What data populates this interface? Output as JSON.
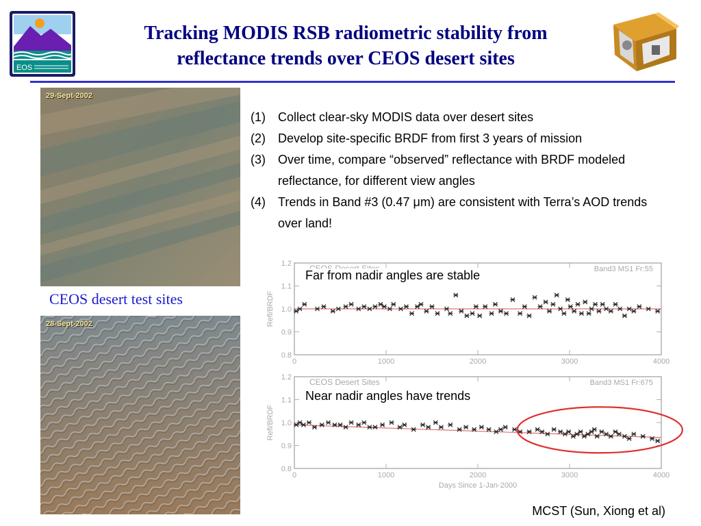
{
  "slide": {
    "title_line1": "Tracking MODIS RSB radiometric stability from",
    "title_line2": "reflectance trends over CEOS desert sites",
    "logo_text": "EOS",
    "caption": "CEOS desert test sites",
    "credit": "MCST (Sun, Xiong et al)",
    "accent_color": "#000080",
    "rule_color": "#3030d0",
    "caption_color": "#1a1acc"
  },
  "photos": {
    "top": {
      "date": "29-Sept-2002"
    },
    "bottom": {
      "date": "28-Sept-2002"
    }
  },
  "steps": [
    {
      "num": "(1)",
      "text": "Collect clear-sky MODIS data over desert sites"
    },
    {
      "num": "(2)",
      "text": "Develop site-specific BRDF from first 3 years of mission"
    },
    {
      "num": "(3)",
      "text": "Over time, compare “observed” reflectance with BRDF modeled reflectance, for different view angles"
    },
    {
      "num": "(4)",
      "text": "Trends in Band #3 (0.47 μm) are consistent with Terra’s AOD trends over land!"
    }
  ],
  "chart_data": [
    {
      "type": "scatter",
      "title": "CEOS Desert Sites",
      "tag": "Band3 MS1 Fr:55",
      "annotation": "Far from nadir angles are stable",
      "ylabel": "Refl/BRDF",
      "xlabel": "",
      "xlim": [
        0,
        4000
      ],
      "ylim": [
        0.8,
        1.2
      ],
      "xticks": [
        "0",
        "1000",
        "2000",
        "3000",
        "4000"
      ],
      "yticks": [
        "0.8",
        "0.9",
        "1.0",
        "1.1",
        "1.2"
      ],
      "marker_color": "#222222",
      "trend_color": "#e07070",
      "trend": {
        "x": [
          0,
          4000
        ],
        "y": [
          1.0,
          1.0
        ]
      },
      "points": {
        "x": [
          20,
          60,
          110,
          250,
          320,
          420,
          480,
          560,
          620,
          700,
          760,
          820,
          880,
          940,
          980,
          1040,
          1080,
          1160,
          1220,
          1280,
          1340,
          1380,
          1440,
          1500,
          1560,
          1660,
          1700,
          1760,
          1820,
          1880,
          1940,
          1980,
          2020,
          2080,
          2150,
          2190,
          2250,
          2310,
          2380,
          2460,
          2510,
          2560,
          2620,
          2680,
          2740,
          2780,
          2820,
          2860,
          2900,
          2940,
          2980,
          3010,
          3050,
          3090,
          3130,
          3170,
          3210,
          3240,
          3280,
          3320,
          3360,
          3400,
          3450,
          3500,
          3550,
          3600,
          3650,
          3700,
          3760,
          3860,
          3960
        ],
        "y": [
          0.99,
          1.0,
          1.02,
          1.0,
          1.01,
          0.99,
          1.0,
          1.01,
          1.02,
          1.0,
          1.01,
          1.0,
          1.01,
          1.02,
          1.01,
          1.0,
          1.02,
          1.0,
          1.01,
          0.98,
          1.01,
          1.02,
          0.99,
          1.01,
          0.98,
          1.0,
          0.98,
          1.06,
          0.99,
          0.97,
          0.98,
          1.01,
          0.97,
          1.01,
          0.98,
          1.02,
          0.99,
          0.98,
          1.04,
          0.98,
          1.01,
          0.97,
          1.05,
          1.01,
          1.03,
          0.99,
          1.02,
          1.06,
          1.0,
          0.98,
          1.04,
          1.01,
          0.99,
          1.02,
          0.98,
          1.03,
          0.98,
          1.0,
          1.02,
          0.99,
          1.02,
          1.0,
          0.99,
          1.02,
          1.0,
          0.97,
          1.0,
          0.99,
          1.01,
          1.0,
          0.99
        ]
      }
    },
    {
      "type": "scatter",
      "title": "CEOS Desert Sites",
      "tag": "Band3 MS1 Fr:675",
      "annotation": "Near nadir angles have trends",
      "ylabel": "Refl/BRDF",
      "xlabel": "Days Since 1-Jan-2000",
      "xlim": [
        0,
        4000
      ],
      "ylim": [
        0.8,
        1.2
      ],
      "xticks": [
        "0",
        "1000",
        "2000",
        "3000",
        "4000"
      ],
      "yticks": [
        "0.8",
        "0.9",
        "1.0",
        "1.1",
        "1.2"
      ],
      "marker_color": "#222222",
      "trend_color": "#e07070",
      "trend": {
        "x": [
          0,
          4000
        ],
        "y": [
          0.99,
          0.935
        ]
      },
      "highlight": {
        "cx": 3330,
        "cy": 0.968,
        "rx": 900,
        "ry": 0.1,
        "color": "#e03030"
      },
      "points": {
        "x": [
          20,
          60,
          100,
          160,
          220,
          300,
          370,
          440,
          500,
          560,
          620,
          700,
          760,
          820,
          880,
          960,
          1060,
          1150,
          1200,
          1300,
          1400,
          1460,
          1540,
          1600,
          1700,
          1800,
          1870,
          1960,
          2040,
          2120,
          2200,
          2250,
          2300,
          2400,
          2460,
          2560,
          2650,
          2700,
          2760,
          2830,
          2900,
          2950,
          2990,
          3040,
          3080,
          3120,
          3160,
          3200,
          3240,
          3270,
          3300,
          3350,
          3400,
          3450,
          3500,
          3540,
          3600,
          3650,
          3700,
          3800,
          3900,
          3960
        ],
        "y": [
          0.99,
          1.0,
          0.99,
          1.0,
          0.98,
          0.99,
          1.0,
          0.99,
          0.99,
          0.98,
          1.0,
          0.99,
          1.0,
          0.98,
          0.98,
          0.99,
          1.0,
          0.98,
          0.99,
          0.97,
          0.99,
          0.98,
          1.0,
          0.98,
          0.99,
          0.97,
          0.98,
          0.97,
          0.98,
          0.97,
          0.96,
          0.97,
          0.98,
          0.97,
          0.96,
          0.96,
          0.97,
          0.96,
          0.95,
          0.97,
          0.96,
          0.95,
          0.96,
          0.94,
          0.95,
          0.96,
          0.94,
          0.95,
          0.96,
          0.97,
          0.94,
          0.96,
          0.95,
          0.94,
          0.96,
          0.95,
          0.94,
          0.93,
          0.95,
          0.94,
          0.93,
          0.92
        ]
      }
    }
  ]
}
